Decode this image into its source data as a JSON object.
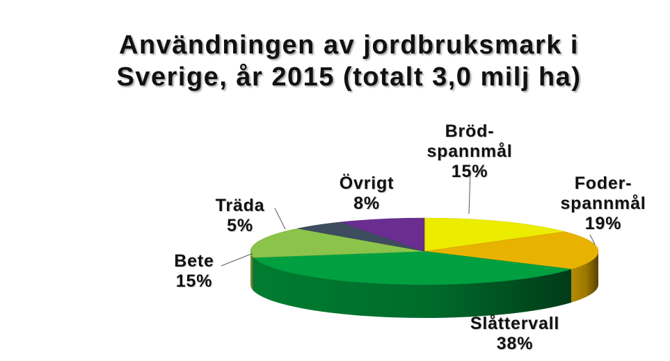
{
  "chart_data": {
    "type": "pie",
    "title_lines": [
      "Användningen av jordbruksmark i",
      "Sverige, år 2015 (totalt 3,0 milj ha)"
    ],
    "slices": [
      {
        "label_lines": [
          "Bröd-",
          "spannmål"
        ],
        "percent_text": "15%",
        "value": 15,
        "color": "#ecec00"
      },
      {
        "label_lines": [
          "Foder-",
          "spannmål"
        ],
        "percent_text": "19%",
        "value": 19,
        "color": "#e8b200"
      },
      {
        "label_lines": [
          "Slåttervall"
        ],
        "percent_text": "38%",
        "value": 38,
        "color": "#00a040"
      },
      {
        "label_lines": [
          "Bete"
        ],
        "percent_text": "15%",
        "value": 15,
        "color": "#8cc34a"
      },
      {
        "label_lines": [
          "Träda"
        ],
        "percent_text": "5%",
        "value": 5,
        "color": "#3d4d5e"
      },
      {
        "label_lines": [
          "Övrigt"
        ],
        "percent_text": "8%",
        "value": 8,
        "color": "#6a2e91"
      }
    ]
  }
}
